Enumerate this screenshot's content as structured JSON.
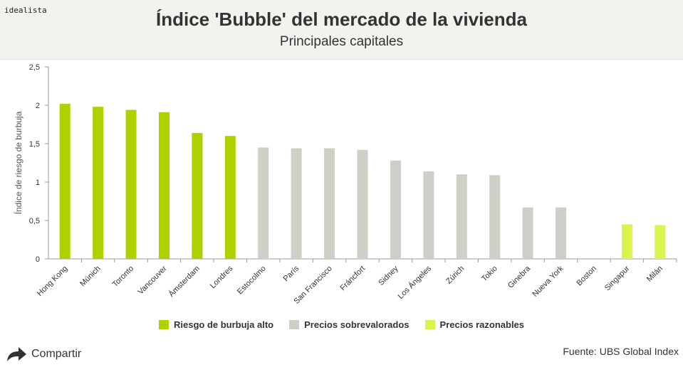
{
  "brand": "idealista",
  "header": {
    "title": "Índice 'Bubble' del mercado de la vivienda",
    "subtitle": "Principales capitales"
  },
  "share_label": "Compartir",
  "source": "Fuente: UBS Global Index",
  "colors": {
    "alto": "#b0d000",
    "sobre": "#cfcfc8",
    "razonable": "#dcf34e"
  },
  "chart_data": {
    "type": "bar",
    "ylabel": "Índice de riesgo de burbuja",
    "ylim": [
      0,
      2.5
    ],
    "yticks": [
      "0",
      "0,5",
      "1",
      "1,5",
      "2",
      "2,5"
    ],
    "ytick_values": [
      0,
      0.5,
      1,
      1.5,
      2,
      2.5
    ],
    "categories": [
      "Hong Kong",
      "Múnich",
      "Toronto",
      "Vancouver",
      "Ámsterdam",
      "Londres",
      "Estocolmo",
      "París",
      "San Francisco",
      "Fráncfort",
      "Sidney",
      "Los Ángeles",
      "Zúrich",
      "Tokio",
      "Ginebra",
      "Nueva York",
      "Boston",
      "Singapur",
      "Milán"
    ],
    "series": [
      {
        "name": "Riesgo de burbuja alto",
        "color": "#b0d000",
        "values": [
          2.02,
          1.98,
          1.94,
          1.91,
          1.64,
          1.6,
          null,
          null,
          null,
          null,
          null,
          null,
          null,
          null,
          null,
          null,
          null,
          null,
          null
        ]
      },
      {
        "name": "Precios sobrevalorados",
        "color": "#cfcfc8",
        "values": [
          null,
          null,
          null,
          null,
          null,
          null,
          1.45,
          1.44,
          1.44,
          1.42,
          1.28,
          1.14,
          1.1,
          1.09,
          0.67,
          0.67,
          null,
          null,
          null
        ]
      },
      {
        "name": "Precios razonables",
        "color": "#dcf34e",
        "values": [
          null,
          null,
          null,
          null,
          null,
          null,
          null,
          null,
          null,
          null,
          null,
          null,
          null,
          null,
          null,
          null,
          null,
          0.45,
          0.44
        ]
      }
    ],
    "legend_position": "bottom",
    "grid": false
  }
}
